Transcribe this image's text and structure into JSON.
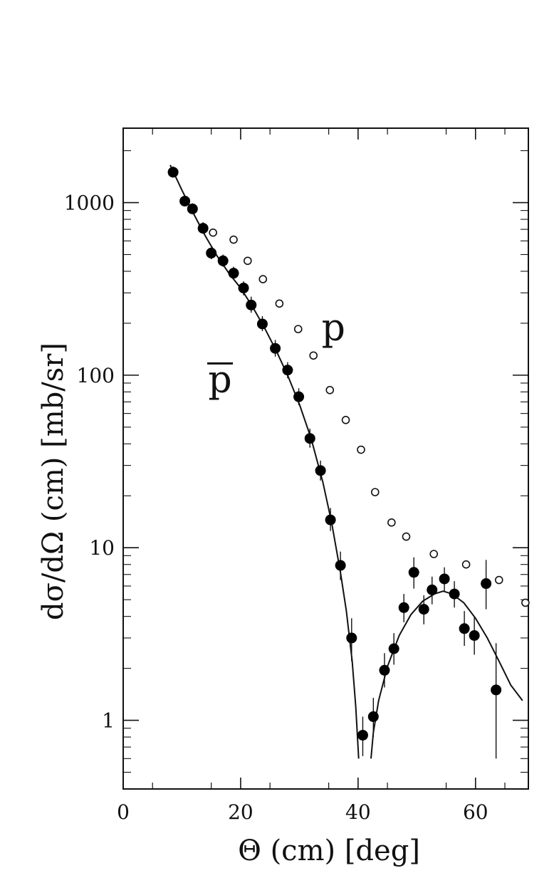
{
  "chart_data": {
    "type": "scatter",
    "title": "",
    "xlabel": "Θ (cm) [deg]",
    "ylabel": "dσ/dΩ (cm) [mb/sr]",
    "xlim": [
      0,
      69
    ],
    "ylim": [
      0.4,
      2700
    ],
    "yscale": "log",
    "grid": false,
    "x_ticks": [
      0,
      20,
      40,
      60
    ],
    "x_tick_labels": [
      "0",
      "20",
      "40",
      "60"
    ],
    "y_ticks": [
      1,
      10,
      100,
      1000
    ],
    "y_tick_labels": [
      "1",
      "10",
      "100",
      "1000"
    ],
    "series": [
      {
        "name": "p̄",
        "marker": "filled-circle",
        "color": "#000000",
        "points": [
          {
            "x": 8.5,
            "y": 1500,
            "lo": 1400,
            "hi": 1620
          },
          {
            "x": 10.5,
            "y": 1020,
            "lo": 960,
            "hi": 1090
          },
          {
            "x": 11.8,
            "y": 920,
            "lo": 860,
            "hi": 990
          },
          {
            "x": 13.6,
            "y": 710,
            "lo": 660,
            "hi": 770
          },
          {
            "x": 15.0,
            "y": 510,
            "lo": 470,
            "hi": 550
          },
          {
            "x": 17.0,
            "y": 460,
            "lo": 425,
            "hi": 500
          },
          {
            "x": 18.8,
            "y": 390,
            "lo": 360,
            "hi": 425
          },
          {
            "x": 20.5,
            "y": 320,
            "lo": 290,
            "hi": 350
          },
          {
            "x": 21.8,
            "y": 255,
            "lo": 230,
            "hi": 285
          },
          {
            "x": 23.7,
            "y": 198,
            "lo": 180,
            "hi": 220
          },
          {
            "x": 25.9,
            "y": 143,
            "lo": 128,
            "hi": 160
          },
          {
            "x": 28.0,
            "y": 107,
            "lo": 96,
            "hi": 119
          },
          {
            "x": 29.9,
            "y": 75,
            "lo": 67,
            "hi": 84
          },
          {
            "x": 31.8,
            "y": 43,
            "lo": 38,
            "hi": 49
          },
          {
            "x": 33.6,
            "y": 28,
            "lo": 24.5,
            "hi": 32
          },
          {
            "x": 35.3,
            "y": 14.5,
            "lo": 12.5,
            "hi": 17
          },
          {
            "x": 37.0,
            "y": 7.9,
            "lo": 6.5,
            "hi": 9.5
          },
          {
            "x": 38.9,
            "y": 3.0,
            "lo": 2.2,
            "hi": 3.9
          },
          {
            "x": 40.8,
            "y": 0.82,
            "lo": 0.62,
            "hi": 1.05
          },
          {
            "x": 42.6,
            "y": 1.05,
            "lo": 0.8,
            "hi": 1.35
          },
          {
            "x": 44.5,
            "y": 1.95,
            "lo": 1.55,
            "hi": 2.45
          },
          {
            "x": 46.1,
            "y": 2.6,
            "lo": 2.1,
            "hi": 3.2
          },
          {
            "x": 47.8,
            "y": 4.5,
            "lo": 3.7,
            "hi": 5.4
          },
          {
            "x": 49.5,
            "y": 7.2,
            "lo": 5.8,
            "hi": 8.8
          },
          {
            "x": 51.2,
            "y": 4.4,
            "lo": 3.6,
            "hi": 5.3
          },
          {
            "x": 52.6,
            "y": 5.7,
            "lo": 4.7,
            "hi": 6.8
          },
          {
            "x": 54.7,
            "y": 6.6,
            "lo": 5.6,
            "hi": 7.7
          },
          {
            "x": 56.4,
            "y": 5.4,
            "lo": 4.5,
            "hi": 6.4
          },
          {
            "x": 58.1,
            "y": 3.4,
            "lo": 2.7,
            "hi": 4.3
          },
          {
            "x": 59.8,
            "y": 3.1,
            "lo": 2.4,
            "hi": 4.0
          },
          {
            "x": 61.8,
            "y": 6.2,
            "lo": 4.4,
            "hi": 8.5
          },
          {
            "x": 63.5,
            "y": 1.5,
            "lo": 0.6,
            "hi": 2.8
          }
        ]
      },
      {
        "name": "p",
        "marker": "open-circle",
        "color": "#000000",
        "points": [
          {
            "x": 15.3,
            "y": 670
          },
          {
            "x": 18.8,
            "y": 610
          },
          {
            "x": 21.2,
            "y": 460
          },
          {
            "x": 23.8,
            "y": 360
          },
          {
            "x": 26.6,
            "y": 260
          },
          {
            "x": 29.8,
            "y": 185
          },
          {
            "x": 32.4,
            "y": 130
          },
          {
            "x": 35.2,
            "y": 82
          },
          {
            "x": 37.9,
            "y": 55
          },
          {
            "x": 40.5,
            "y": 37
          },
          {
            "x": 42.9,
            "y": 21
          },
          {
            "x": 45.7,
            "y": 14
          },
          {
            "x": 48.2,
            "y": 11.6
          },
          {
            "x": 52.9,
            "y": 9.2
          },
          {
            "x": 58.4,
            "y": 8.0
          },
          {
            "x": 64.0,
            "y": 6.5
          },
          {
            "x": 68.5,
            "y": 4.8
          }
        ]
      }
    ],
    "fit_curve": {
      "series": "p̄",
      "segments": [
        [
          {
            "x": 8.0,
            "y": 1650
          },
          {
            "x": 10,
            "y": 1180
          },
          {
            "x": 12,
            "y": 860
          },
          {
            "x": 14,
            "y": 640
          },
          {
            "x": 16,
            "y": 490
          },
          {
            "x": 18,
            "y": 390
          },
          {
            "x": 20,
            "y": 320
          },
          {
            "x": 22,
            "y": 250
          },
          {
            "x": 24,
            "y": 190
          },
          {
            "x": 26,
            "y": 140
          },
          {
            "x": 28,
            "y": 100
          },
          {
            "x": 30,
            "y": 68
          },
          {
            "x": 32,
            "y": 43
          },
          {
            "x": 34,
            "y": 24
          },
          {
            "x": 35.5,
            "y": 14
          },
          {
            "x": 37,
            "y": 7.2
          },
          {
            "x": 38,
            "y": 4.3
          },
          {
            "x": 39,
            "y": 2.2
          },
          {
            "x": 39.6,
            "y": 1.2
          },
          {
            "x": 40.1,
            "y": 0.6
          }
        ],
        [
          {
            "x": 42.2,
            "y": 0.6
          },
          {
            "x": 42.6,
            "y": 0.85
          },
          {
            "x": 43.5,
            "y": 1.3
          },
          {
            "x": 45,
            "y": 2.05
          },
          {
            "x": 47,
            "y": 3.1
          },
          {
            "x": 49,
            "y": 4.1
          },
          {
            "x": 51,
            "y": 4.9
          },
          {
            "x": 53,
            "y": 5.4
          },
          {
            "x": 54.5,
            "y": 5.6
          },
          {
            "x": 56,
            "y": 5.4
          },
          {
            "x": 58,
            "y": 4.8
          },
          {
            "x": 60,
            "y": 3.9
          },
          {
            "x": 62,
            "y": 3.0
          },
          {
            "x": 64,
            "y": 2.2
          },
          {
            "x": 66,
            "y": 1.6
          },
          {
            "x": 68,
            "y": 1.3
          }
        ]
      ]
    },
    "annotations": [
      {
        "text": "p",
        "x": 35.8,
        "y": 160,
        "for_series": "p"
      },
      {
        "text": "p",
        "x": 16.5,
        "y": 80,
        "for_series": "p̄",
        "overline": true
      }
    ]
  }
}
